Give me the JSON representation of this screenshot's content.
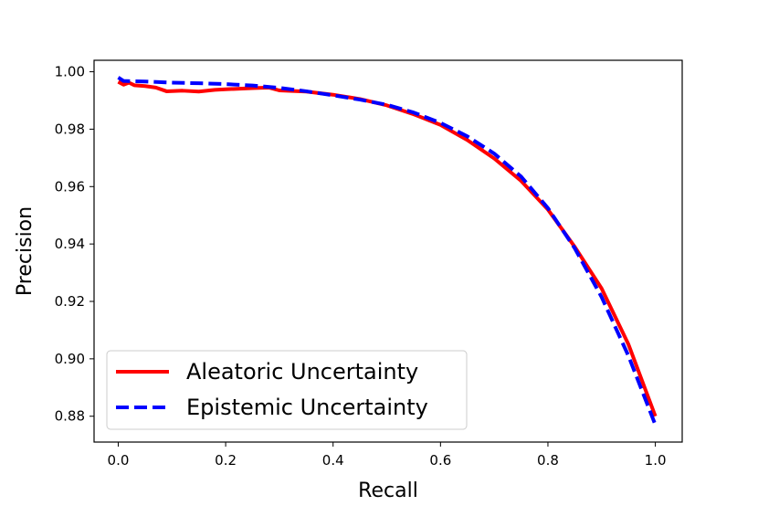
{
  "chart_data": {
    "type": "line",
    "title": "",
    "xlabel": "Recall",
    "ylabel": "Precision",
    "xlim": [
      -0.045,
      1.05
    ],
    "ylim": [
      0.871,
      1.004
    ],
    "xticks": [
      0.0,
      0.2,
      0.4,
      0.6,
      0.8,
      1.0
    ],
    "xtick_labels": [
      "0.0",
      "0.2",
      "0.4",
      "0.6",
      "0.8",
      "1.0"
    ],
    "yticks": [
      0.88,
      0.9,
      0.92,
      0.94,
      0.96,
      0.98,
      1.0
    ],
    "ytick_labels": [
      "0.88",
      "0.90",
      "0.92",
      "0.94",
      "0.96",
      "0.98",
      "1.00"
    ],
    "grid": false,
    "legend_position": "lower-left",
    "series": [
      {
        "name": "Aleatoric Uncertainty",
        "color": "#ff0000",
        "style": "solid",
        "x": [
          0.0,
          0.01,
          0.02,
          0.03,
          0.05,
          0.07,
          0.09,
          0.12,
          0.15,
          0.18,
          0.2,
          0.25,
          0.28,
          0.3,
          0.35,
          0.4,
          0.45,
          0.5,
          0.55,
          0.6,
          0.65,
          0.7,
          0.75,
          0.8,
          0.85,
          0.9,
          0.95,
          1.0
        ],
        "y": [
          0.9965,
          0.9955,
          0.9962,
          0.9953,
          0.995,
          0.9945,
          0.9932,
          0.9934,
          0.9931,
          0.9937,
          0.9939,
          0.9943,
          0.9945,
          0.9935,
          0.9931,
          0.992,
          0.9905,
          0.9883,
          0.9852,
          0.9815,
          0.9762,
          0.9698,
          0.962,
          0.952,
          0.939,
          0.9245,
          0.905,
          0.88
        ]
      },
      {
        "name": "Epistemic Uncertainty",
        "color": "#0000ff",
        "style": "dashed",
        "x": [
          0.0,
          0.01,
          0.05,
          0.1,
          0.15,
          0.2,
          0.25,
          0.3,
          0.35,
          0.4,
          0.45,
          0.5,
          0.55,
          0.6,
          0.65,
          0.7,
          0.75,
          0.8,
          0.85,
          0.9,
          0.95,
          1.0
        ],
        "y": [
          0.998,
          0.9968,
          0.9966,
          0.9962,
          0.996,
          0.9957,
          0.9952,
          0.9944,
          0.9932,
          0.9918,
          0.9903,
          0.9885,
          0.9858,
          0.9822,
          0.9775,
          0.9715,
          0.9635,
          0.9525,
          0.9385,
          0.9215,
          0.901,
          0.877
        ]
      }
    ]
  }
}
